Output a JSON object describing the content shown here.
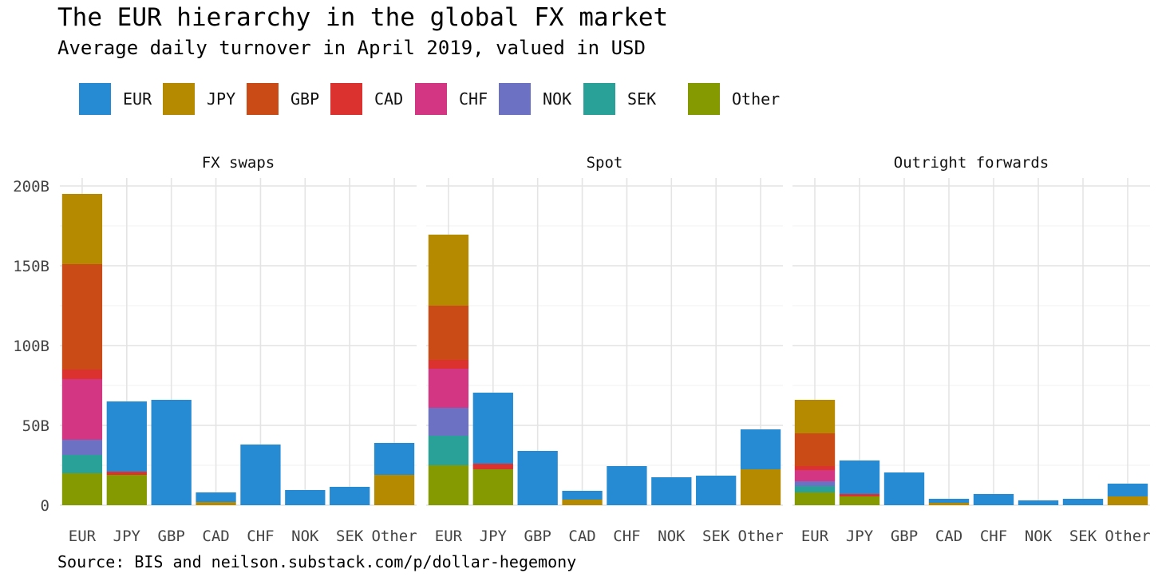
{
  "title": "The EUR hierarchy in the global FX market",
  "subtitle": "Average daily turnover in April 2019, valued in USD",
  "caption": "Source: BIS and neilson.substack.com/p/dollar-hegemony",
  "colors": {
    "EUR": "#268bd2",
    "JPY": "#b58900",
    "GBP": "#cb4b16",
    "CAD": "#dc322f",
    "CHF": "#d33682",
    "NOK": "#6c71c4",
    "SEK": "#2aa198",
    "Other": "#859900"
  },
  "chart_data": {
    "type": "bar",
    "stacked": true,
    "legend_position": "top-left",
    "grid": true,
    "categories": [
      "EUR",
      "JPY",
      "GBP",
      "CAD",
      "CHF",
      "NOK",
      "SEK",
      "Other"
    ],
    "legend": [
      "EUR",
      "JPY",
      "GBP",
      "CAD",
      "CHF",
      "NOK",
      "SEK",
      "Other"
    ],
    "ylim": [
      0,
      200
    ],
    "yticks": [
      0,
      50,
      100,
      150,
      200
    ],
    "ytick_labels": [
      "0",
      "50B",
      "100B",
      "150B",
      "200B"
    ],
    "panels": [
      {
        "name": "FX swaps",
        "series": [
          {
            "name": "EUR",
            "values": [
              0,
              44,
              66,
              6,
              38,
              9.5,
              11.5,
              20
            ]
          },
          {
            "name": "JPY",
            "values": [
              44,
              0,
              0,
              2,
              0,
              0,
              0,
              19
            ]
          },
          {
            "name": "GBP",
            "values": [
              66,
              0,
              0,
              0,
              0,
              0,
              0,
              0
            ]
          },
          {
            "name": "CAD",
            "values": [
              6,
              2,
              0,
              0,
              0,
              0,
              0,
              0
            ]
          },
          {
            "name": "CHF",
            "values": [
              38,
              0,
              0,
              0,
              0,
              0,
              0,
              0
            ]
          },
          {
            "name": "NOK",
            "values": [
              9.5,
              0,
              0,
              0,
              0,
              0,
              0,
              0
            ]
          },
          {
            "name": "SEK",
            "values": [
              11.5,
              0,
              0,
              0,
              0,
              0,
              0,
              0
            ]
          },
          {
            "name": "Other",
            "values": [
              20,
              19,
              0,
              0,
              0,
              0,
              0,
              0
            ]
          }
        ]
      },
      {
        "name": "Spot",
        "series": [
          {
            "name": "EUR",
            "values": [
              0,
              44.5,
              34,
              5.5,
              24.5,
              17.5,
              18.5,
              25
            ]
          },
          {
            "name": "JPY",
            "values": [
              44.5,
              0,
              0,
              3.5,
              0,
              0,
              0,
              22.5
            ]
          },
          {
            "name": "GBP",
            "values": [
              34,
              0,
              0,
              0,
              0,
              0,
              0,
              0
            ]
          },
          {
            "name": "CAD",
            "values": [
              5.5,
              3.5,
              0,
              0,
              0,
              0,
              0,
              0
            ]
          },
          {
            "name": "CHF",
            "values": [
              24.5,
              0,
              0,
              0,
              0,
              0,
              0,
              0
            ]
          },
          {
            "name": "NOK",
            "values": [
              17.5,
              0,
              0,
              0,
              0,
              0,
              0,
              0
            ]
          },
          {
            "name": "SEK",
            "values": [
              18.5,
              0,
              0,
              0,
              0,
              0,
              0,
              0
            ]
          },
          {
            "name": "Other",
            "values": [
              25,
              22.5,
              0,
              0,
              0,
              0,
              0,
              0
            ]
          }
        ]
      },
      {
        "name": "Outright forwards",
        "series": [
          {
            "name": "EUR",
            "values": [
              0,
              21,
              20.5,
              2.5,
              7,
              3,
              4,
              8
            ]
          },
          {
            "name": "JPY",
            "values": [
              21,
              0,
              0,
              1.5,
              0,
              0,
              0,
              5.5
            ]
          },
          {
            "name": "GBP",
            "values": [
              20.5,
              0,
              0,
              0,
              0,
              0,
              0,
              0
            ]
          },
          {
            "name": "CAD",
            "values": [
              2.5,
              1.5,
              0,
              0,
              0,
              0,
              0,
              0
            ]
          },
          {
            "name": "CHF",
            "values": [
              7,
              0,
              0,
              0,
              0,
              0,
              0,
              0
            ]
          },
          {
            "name": "NOK",
            "values": [
              3,
              0,
              0,
              0,
              0,
              0,
              0,
              0
            ]
          },
          {
            "name": "SEK",
            "values": [
              4,
              0,
              0,
              0,
              0,
              0,
              0,
              0
            ]
          },
          {
            "name": "Other",
            "values": [
              8,
              5.5,
              0,
              0,
              0,
              0,
              0,
              0
            ]
          }
        ]
      }
    ]
  }
}
